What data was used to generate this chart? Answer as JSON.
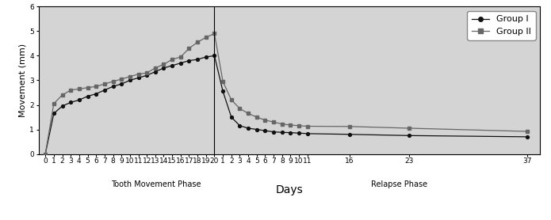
{
  "xlabel": "Days",
  "ylabel": "Movement (mm)",
  "ylim": [
    0,
    6
  ],
  "yticks": [
    0,
    1,
    2,
    3,
    4,
    5,
    6
  ],
  "background_color": "#d4d4d4",
  "outer_bg_color": "#ffffff",
  "group1_color": "#111111",
  "group2_color": "#666666",
  "tooth_phase_label": "Tooth Movement Phase",
  "relapse_phase_label": "Relapse Phase",
  "group1_tooth_y": [
    0,
    1.65,
    1.95,
    2.1,
    2.2,
    2.35,
    2.45,
    2.6,
    2.75,
    2.85,
    3.0,
    3.1,
    3.2,
    3.35,
    3.5,
    3.6,
    3.7,
    3.8,
    3.85,
    3.95,
    4.0
  ],
  "group2_tooth_y": [
    0,
    2.05,
    2.4,
    2.6,
    2.65,
    2.7,
    2.75,
    2.85,
    2.95,
    3.05,
    3.15,
    3.25,
    3.3,
    3.5,
    3.65,
    3.85,
    3.95,
    4.3,
    4.55,
    4.75,
    4.9
  ],
  "group1_relapse_x": [
    1,
    2,
    3,
    4,
    5,
    6,
    7,
    8,
    9,
    10,
    11,
    16,
    23,
    37
  ],
  "group2_relapse_x": [
    1,
    2,
    3,
    4,
    5,
    6,
    7,
    8,
    9,
    10,
    11,
    16,
    23,
    37
  ],
  "group1_relapse_y": [
    2.55,
    1.5,
    1.15,
    1.05,
    1.0,
    0.95,
    0.9,
    0.88,
    0.87,
    0.85,
    0.83,
    0.8,
    0.75,
    0.7
  ],
  "group2_relapse_y": [
    2.95,
    2.2,
    1.85,
    1.65,
    1.5,
    1.38,
    1.3,
    1.22,
    1.18,
    1.15,
    1.13,
    1.12,
    1.05,
    0.92
  ],
  "tooth_xtick_vals": [
    0,
    1,
    2,
    3,
    4,
    5,
    6,
    7,
    8,
    9,
    10,
    11,
    12,
    13,
    14,
    15,
    16,
    17,
    18,
    19,
    20
  ],
  "relapse_xtick_display": [
    1,
    2,
    3,
    4,
    5,
    6,
    7,
    8,
    9,
    10,
    11,
    16,
    23,
    37
  ],
  "legend_labels": [
    "Group I",
    "Group II"
  ],
  "legend_fontsize": 8,
  "axis_fontsize": 8,
  "tick_fontsize": 6.5
}
